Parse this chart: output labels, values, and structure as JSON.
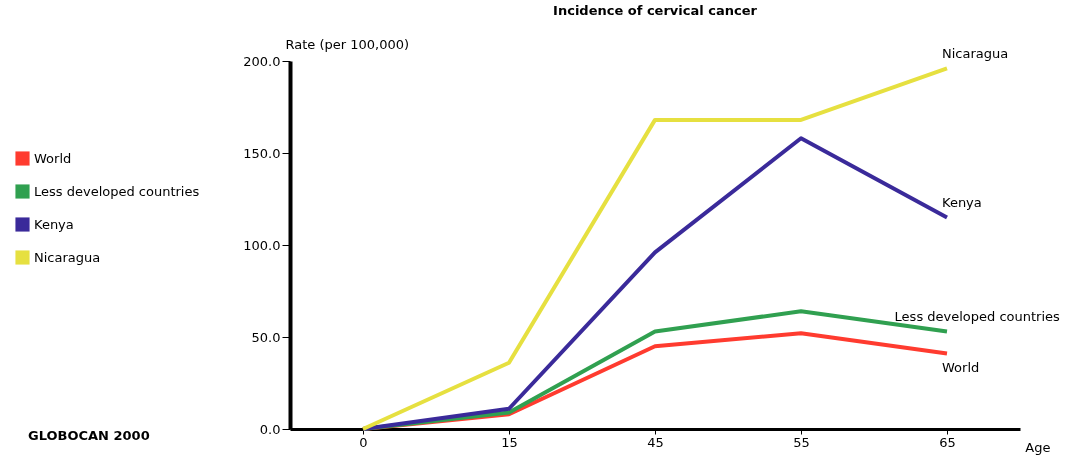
{
  "chart_data": {
    "type": "line",
    "title": "Incidence of cervical cancer",
    "ylabel": "Rate (per 100,000)",
    "xlabel": "Age",
    "categories": [
      "0",
      "15",
      "45",
      "55",
      "65"
    ],
    "series": [
      {
        "name": "World",
        "color": "#ff3b2f",
        "values": [
          0,
          8,
          45,
          52,
          41
        ]
      },
      {
        "name": "Less developed countries",
        "color": "#30a050",
        "values": [
          0,
          9,
          53,
          64,
          53
        ]
      },
      {
        "name": "Kenya",
        "color": "#3a2a9a",
        "values": [
          0,
          11,
          96,
          158,
          115
        ]
      },
      {
        "name": "Nicaragua",
        "color": "#e6e040",
        "values": [
          0,
          36,
          168,
          168,
          196
        ]
      }
    ],
    "ylim": [
      0,
      200
    ],
    "yticks": [
      {
        "value": 0,
        "label": "0.0"
      },
      {
        "value": 50,
        "label": "50.0"
      },
      {
        "value": 100,
        "label": "100.0"
      },
      {
        "value": 150,
        "label": "150.0"
      },
      {
        "value": 200,
        "label": "200.0"
      }
    ],
    "grid": false,
    "legend": "left",
    "marker": "none",
    "line_style": "solid",
    "annotations": [
      "GLOBOCAN 2000"
    ]
  }
}
